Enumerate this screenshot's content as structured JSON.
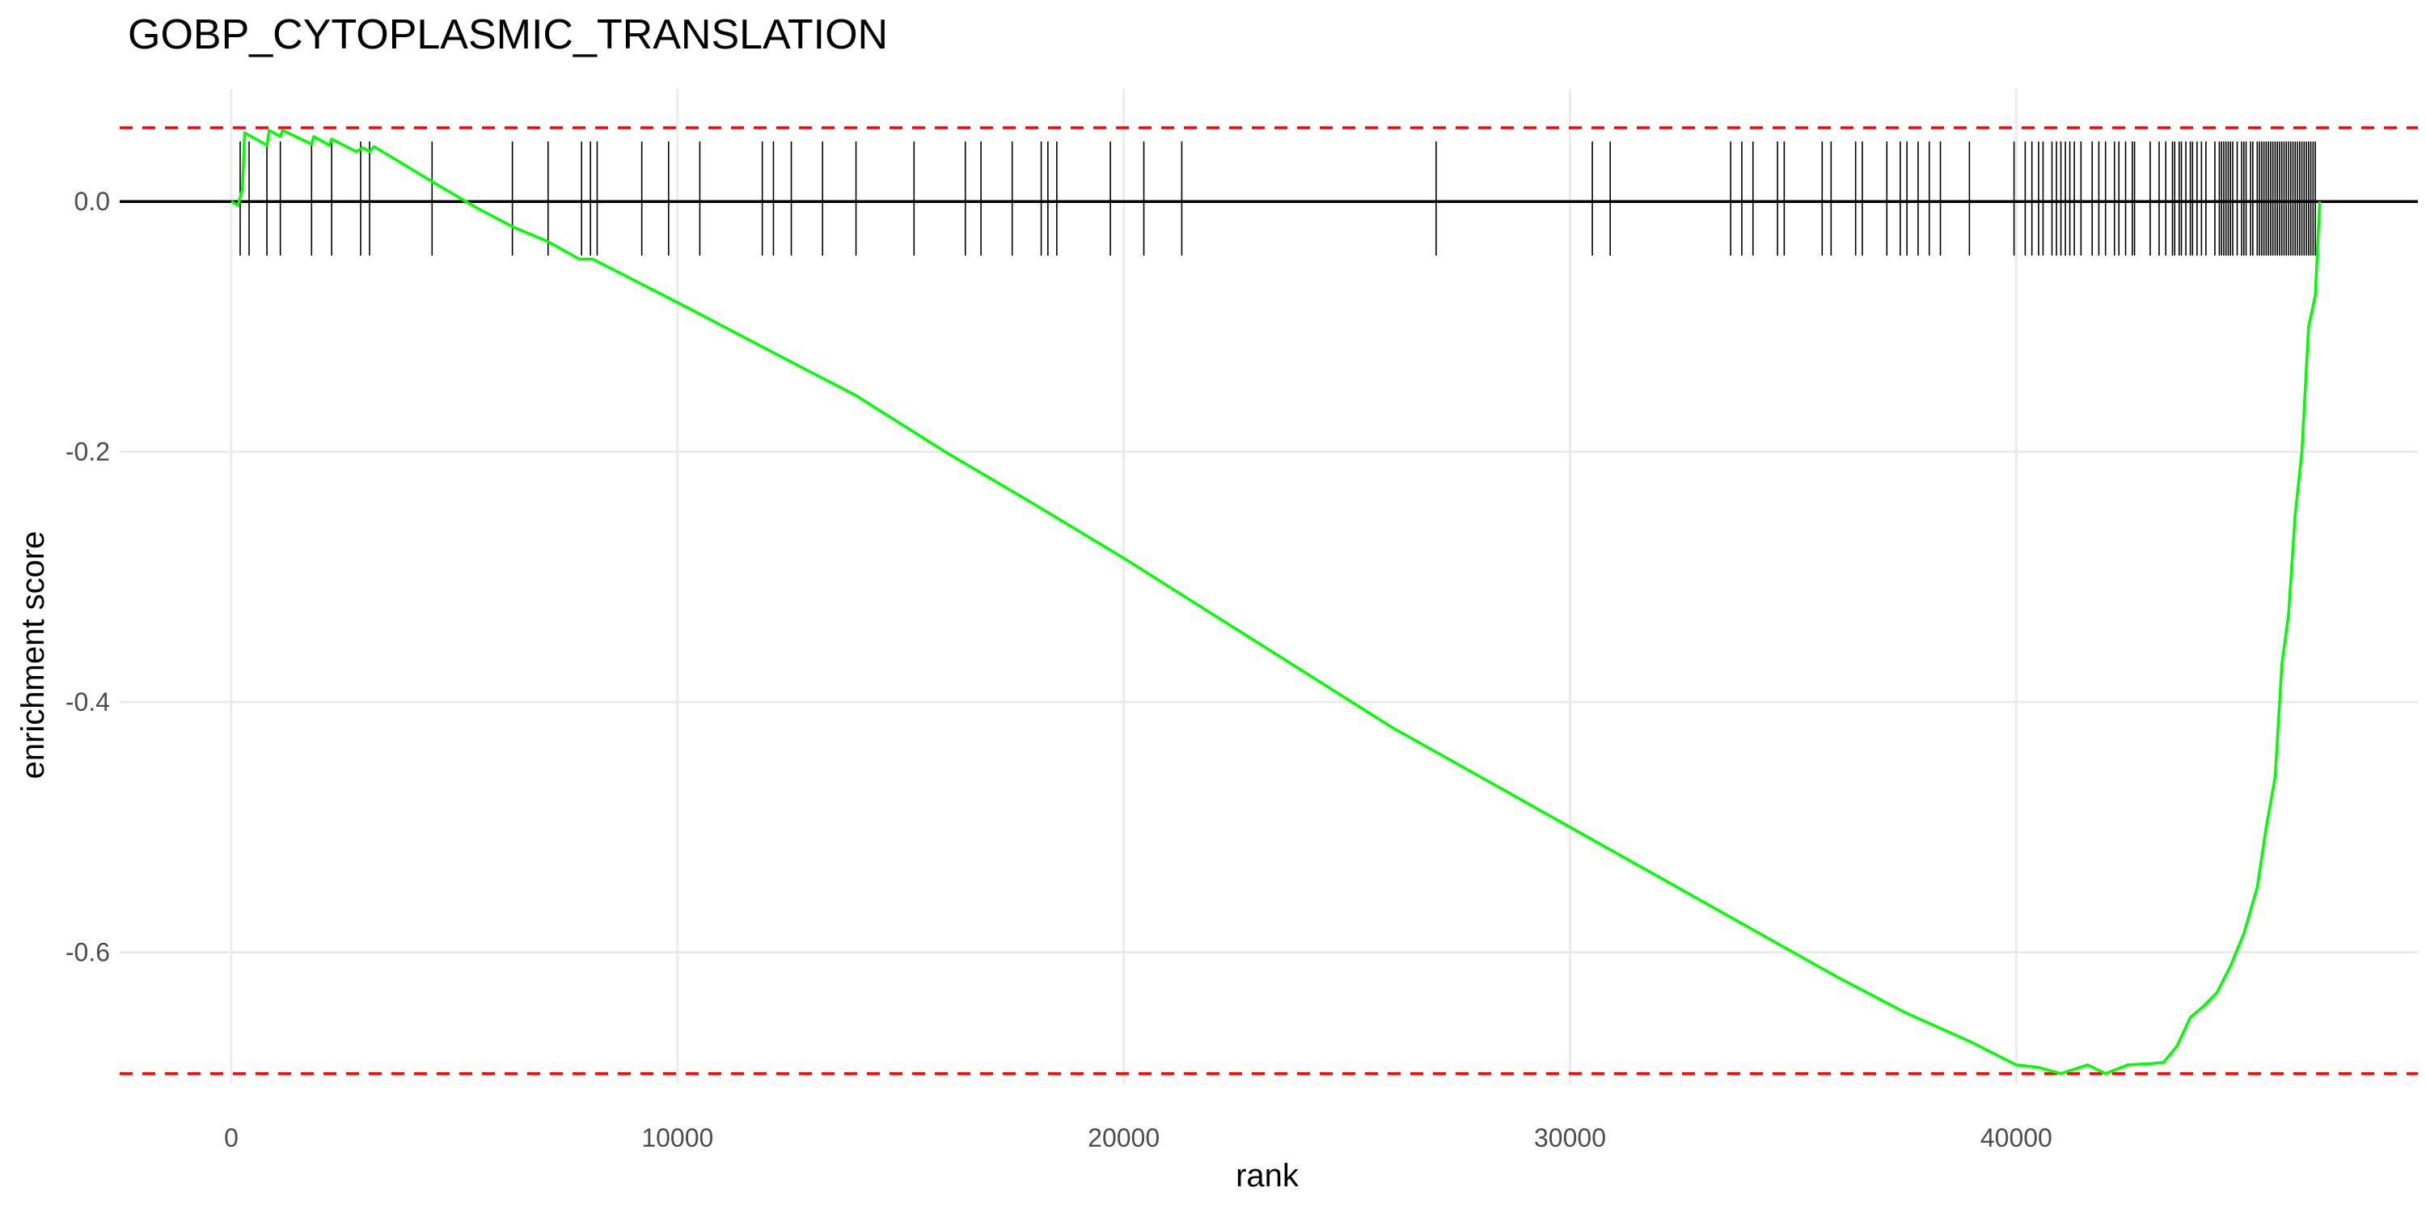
{
  "chart_data": {
    "type": "line",
    "title": "GOBP_CYTOPLASMIC_TRANSLATION",
    "xlabel": "rank",
    "ylabel": "enrichment score",
    "xlim": [
      -2500,
      49000
    ],
    "ylim": [
      -0.705,
      0.09
    ],
    "x_ticks": [
      0,
      10000,
      20000,
      30000,
      40000
    ],
    "x_tick_labels": [
      "0",
      "10000",
      "20000",
      "30000",
      "40000"
    ],
    "y_ticks": [
      0.0,
      -0.2,
      -0.4,
      -0.6
    ],
    "y_tick_labels": [
      "0.0",
      "-0.2",
      "-0.4",
      "-0.6"
    ],
    "grid": true,
    "zero_line": 0.0,
    "max_es": 0.059,
    "min_es": -0.697,
    "colors": {
      "curve": "#00ff00",
      "threshold": "#ff0000",
      "hits": "#000000",
      "grid": "#ebebeb",
      "zero_line": "#000000"
    },
    "series": [
      {
        "points": [
          [
            0,
            0.0
          ],
          [
            150,
            -0.003
          ],
          [
            250,
            0.01
          ],
          [
            300,
            0.055
          ],
          [
            550,
            0.05
          ],
          [
            800,
            0.045
          ],
          [
            850,
            0.057
          ],
          [
            1100,
            0.052
          ],
          [
            1150,
            0.057
          ],
          [
            1500,
            0.051
          ],
          [
            1800,
            0.046
          ],
          [
            1850,
            0.052
          ],
          [
            2200,
            0.045
          ],
          [
            2250,
            0.05
          ],
          [
            2800,
            0.04
          ],
          [
            2950,
            0.043
          ],
          [
            3100,
            0.04
          ],
          [
            3200,
            0.044
          ],
          [
            4500,
            0.016
          ],
          [
            5500,
            -0.005
          ],
          [
            6300,
            -0.02
          ],
          [
            7100,
            -0.032
          ],
          [
            7800,
            -0.046
          ],
          [
            8100,
            -0.046
          ],
          [
            9200,
            -0.066
          ],
          [
            10400,
            -0.088
          ],
          [
            12000,
            -0.118
          ],
          [
            14000,
            -0.155
          ],
          [
            16000,
            -0.2
          ],
          [
            18000,
            -0.242
          ],
          [
            20000,
            -0.285
          ],
          [
            22000,
            -0.33
          ],
          [
            24000,
            -0.375
          ],
          [
            26000,
            -0.42
          ],
          [
            28000,
            -0.46
          ],
          [
            30000,
            -0.5
          ],
          [
            32000,
            -0.54
          ],
          [
            34000,
            -0.58
          ],
          [
            36000,
            -0.62
          ],
          [
            37500,
            -0.648
          ],
          [
            39000,
            -0.672
          ],
          [
            40000,
            -0.69
          ],
          [
            40500,
            -0.692
          ],
          [
            41000,
            -0.697
          ],
          [
            41600,
            -0.69
          ],
          [
            42000,
            -0.697
          ],
          [
            42500,
            -0.69
          ],
          [
            43000,
            -0.689
          ],
          [
            43300,
            -0.688
          ],
          [
            43600,
            -0.675
          ],
          [
            43900,
            -0.652
          ],
          [
            44200,
            -0.643
          ],
          [
            44500,
            -0.632
          ],
          [
            44800,
            -0.611
          ],
          [
            45100,
            -0.585
          ],
          [
            45400,
            -0.548
          ],
          [
            45600,
            -0.5
          ],
          [
            45800,
            -0.46
          ],
          [
            45950,
            -0.37
          ],
          [
            46100,
            -0.33
          ],
          [
            46250,
            -0.25
          ],
          [
            46400,
            -0.2
          ],
          [
            46550,
            -0.1
          ],
          [
            46700,
            -0.075
          ],
          [
            46800,
            0.0
          ]
        ]
      }
    ],
    "hit_ranks": [
      200,
      400,
      800,
      1100,
      1800,
      2250,
      2900,
      3100,
      4500,
      6300,
      7100,
      7850,
      8050,
      8200,
      9200,
      9800,
      10500,
      11900,
      12150,
      12550,
      13250,
      14000,
      15300,
      16450,
      16800,
      17500,
      18150,
      18300,
      18500,
      19700,
      20450,
      21300,
      27000,
      30500,
      30900,
      33600,
      33850,
      34100,
      34650,
      34800,
      35650,
      35850,
      36400,
      36550,
      37100,
      37400,
      37550,
      37800,
      38050,
      38300,
      38950,
      39950,
      40200,
      40350,
      40500,
      40600,
      40800,
      40900,
      41000,
      41100,
      41200,
      41300,
      41450,
      41700,
      41850,
      42000,
      42200,
      42300,
      42450,
      42600,
      42650,
      43000,
      43200,
      43350,
      43500,
      43550,
      43650,
      43700,
      43800,
      43900,
      43950,
      44050,
      44150,
      44250,
      44450,
      44550,
      44600,
      44650,
      44700,
      44750,
      44800,
      44850,
      44950,
      45050,
      45100,
      45150,
      45250,
      45300,
      45400,
      45450,
      45500,
      45550,
      45600,
      45650,
      45700,
      45750,
      45800,
      45850,
      45900,
      45950,
      46000,
      46050,
      46100,
      46150,
      46200,
      46250,
      46300,
      46350,
      46400,
      46450,
      46500,
      46550,
      46600,
      46650,
      46700
    ]
  }
}
